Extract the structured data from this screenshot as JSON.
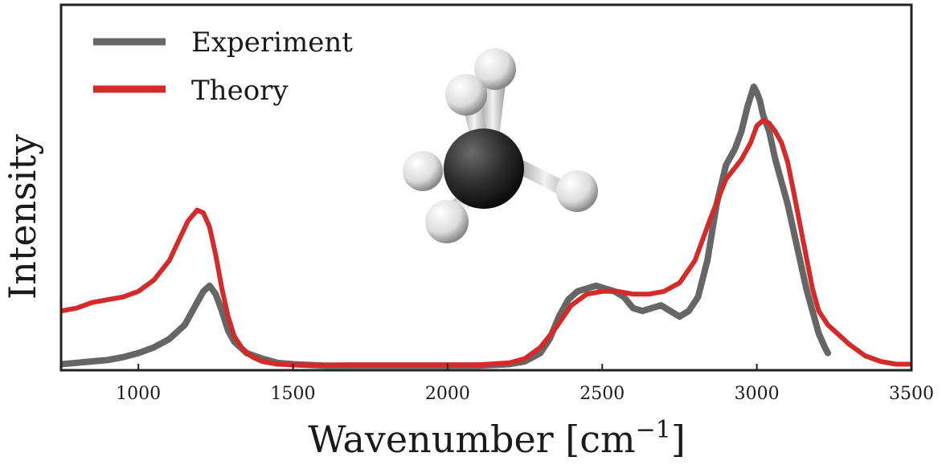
{
  "colors": {
    "experiment": "#666666",
    "theory": "#d42a2a",
    "frame": "#222222",
    "carbon": "#2b2b2b",
    "hydrogen": "#e6e6e6"
  },
  "chart_data": {
    "type": "line",
    "title": "",
    "xlabel_text": "Wavenumber [cm",
    "xlabel_exponent": "−1",
    "xlabel_close": "]",
    "ylabel": "Intensity",
    "xlim": [
      750,
      3500
    ],
    "ylim": [
      0,
      1.0
    ],
    "xticks": [
      1000,
      1500,
      2000,
      2500,
      3000,
      3500
    ],
    "xtick_labels": [
      "1000",
      "1500",
      "2000",
      "2500",
      "3000",
      "3500"
    ],
    "yticks_shown": false,
    "grid": false,
    "legend_position": "top-left",
    "inset": "methane molecule (CH4 ball-and-stick)",
    "series": [
      {
        "name": "Experiment",
        "color": "#666666",
        "x": [
          750,
          800,
          850,
          900,
          950,
          1000,
          1050,
          1100,
          1150,
          1180,
          1210,
          1230,
          1250,
          1270,
          1290,
          1310,
          1330,
          1350,
          1400,
          1450,
          1500,
          1600,
          1700,
          1800,
          1900,
          2000,
          2100,
          2200,
          2250,
          2300,
          2330,
          2360,
          2390,
          2420,
          2450,
          2480,
          2510,
          2540,
          2570,
          2600,
          2630,
          2660,
          2690,
          2720,
          2750,
          2780,
          2810,
          2840,
          2870,
          2900,
          2930,
          2950,
          2970,
          2990,
          3000,
          3010,
          3020,
          3040,
          3060,
          3080,
          3100,
          3120,
          3140,
          3160,
          3180,
          3200,
          3220,
          3230
        ],
        "y": [
          0.01,
          0.015,
          0.02,
          0.025,
          0.035,
          0.05,
          0.07,
          0.1,
          0.15,
          0.21,
          0.27,
          0.29,
          0.26,
          0.2,
          0.13,
          0.09,
          0.07,
          0.05,
          0.03,
          0.015,
          0.01,
          0.005,
          0.005,
          0.005,
          0.005,
          0.005,
          0.005,
          0.01,
          0.02,
          0.05,
          0.1,
          0.18,
          0.24,
          0.27,
          0.28,
          0.29,
          0.28,
          0.27,
          0.25,
          0.21,
          0.2,
          0.21,
          0.22,
          0.2,
          0.18,
          0.2,
          0.25,
          0.38,
          0.58,
          0.72,
          0.78,
          0.84,
          0.93,
          1.0,
          0.98,
          0.95,
          0.9,
          0.84,
          0.74,
          0.66,
          0.58,
          0.48,
          0.38,
          0.28,
          0.2,
          0.12,
          0.07,
          0.05
        ]
      },
      {
        "name": "Theory",
        "color": "#d42a2a",
        "x": [
          750,
          800,
          850,
          900,
          950,
          1000,
          1050,
          1100,
          1130,
          1160,
          1190,
          1210,
          1230,
          1250,
          1270,
          1290,
          1310,
          1340,
          1370,
          1400,
          1450,
          1500,
          1600,
          1700,
          1800,
          1900,
          2000,
          2100,
          2200,
          2250,
          2300,
          2350,
          2400,
          2450,
          2500,
          2550,
          2600,
          2650,
          2700,
          2750,
          2800,
          2850,
          2900,
          2950,
          2980,
          3000,
          3020,
          3040,
          3060,
          3080,
          3100,
          3120,
          3150,
          3180,
          3200,
          3230,
          3260,
          3300,
          3350,
          3400,
          3450,
          3500
        ],
        "y": [
          0.2,
          0.21,
          0.23,
          0.24,
          0.25,
          0.27,
          0.31,
          0.38,
          0.45,
          0.52,
          0.56,
          0.55,
          0.5,
          0.4,
          0.28,
          0.18,
          0.11,
          0.06,
          0.035,
          0.02,
          0.01,
          0.008,
          0.007,
          0.008,
          0.008,
          0.008,
          0.008,
          0.008,
          0.015,
          0.03,
          0.07,
          0.14,
          0.22,
          0.26,
          0.27,
          0.27,
          0.26,
          0.26,
          0.27,
          0.3,
          0.38,
          0.53,
          0.67,
          0.74,
          0.8,
          0.86,
          0.88,
          0.87,
          0.84,
          0.8,
          0.73,
          0.62,
          0.45,
          0.28,
          0.2,
          0.15,
          0.12,
          0.08,
          0.04,
          0.02,
          0.01,
          0.01
        ]
      }
    ]
  }
}
